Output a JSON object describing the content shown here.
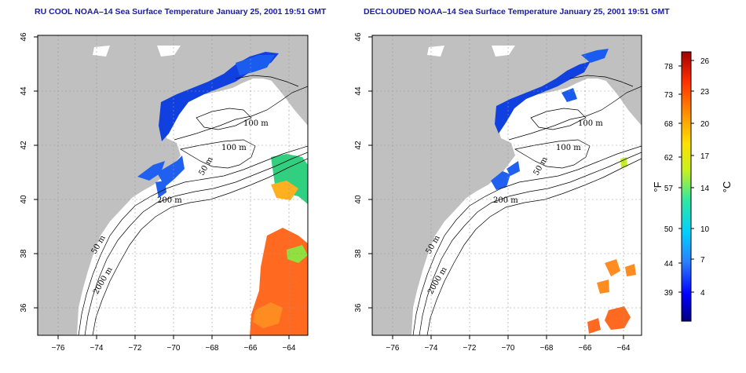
{
  "maps": [
    {
      "title": "RU COOL NOAA–14 Sea Surface Temperature January 25, 2001 19:51 GMT",
      "xticks": [
        "−76",
        "−74",
        "−72",
        "−70",
        "−68",
        "−66",
        "−64"
      ],
      "yticks": [
        "46",
        "44",
        "42",
        "40",
        "38",
        "36"
      ],
      "contour_labels": [
        "100 m",
        "100 m",
        "50 m",
        "200 m",
        "50 m",
        "2000 m"
      ]
    },
    {
      "title": "DECLOUDED NOAA–14 Sea Surface Temperature January 25, 2001 19:51 GMT",
      "xticks": [
        "−76",
        "−74",
        "−72",
        "−70",
        "−68",
        "−66",
        "−64"
      ],
      "yticks": [
        "46",
        "44",
        "42",
        "40",
        "38",
        "36"
      ],
      "contour_labels": [
        "100 m",
        "100 m",
        "50 m",
        "200 m",
        "50 m",
        "2000 m"
      ]
    }
  ],
  "colorbar": {
    "fahrenheit_ticks": [
      "78",
      "73",
      "68",
      "62",
      "57",
      "50",
      "44",
      "39"
    ],
    "celsius_ticks": [
      "26",
      "23",
      "20",
      "17",
      "14",
      "10",
      "7",
      "4"
    ],
    "fahrenheit_unit": "°F",
    "celsius_unit": "°C",
    "colors": [
      "#000080",
      "#0000ff",
      "#2a7fff",
      "#00d0ff",
      "#30e8a0",
      "#c8f020",
      "#ffe000",
      "#ff9000",
      "#ff3000",
      "#a00000"
    ]
  },
  "colors": {
    "land": "#c0c0c0",
    "ocean": "#ffffff",
    "grid": "#999999"
  }
}
